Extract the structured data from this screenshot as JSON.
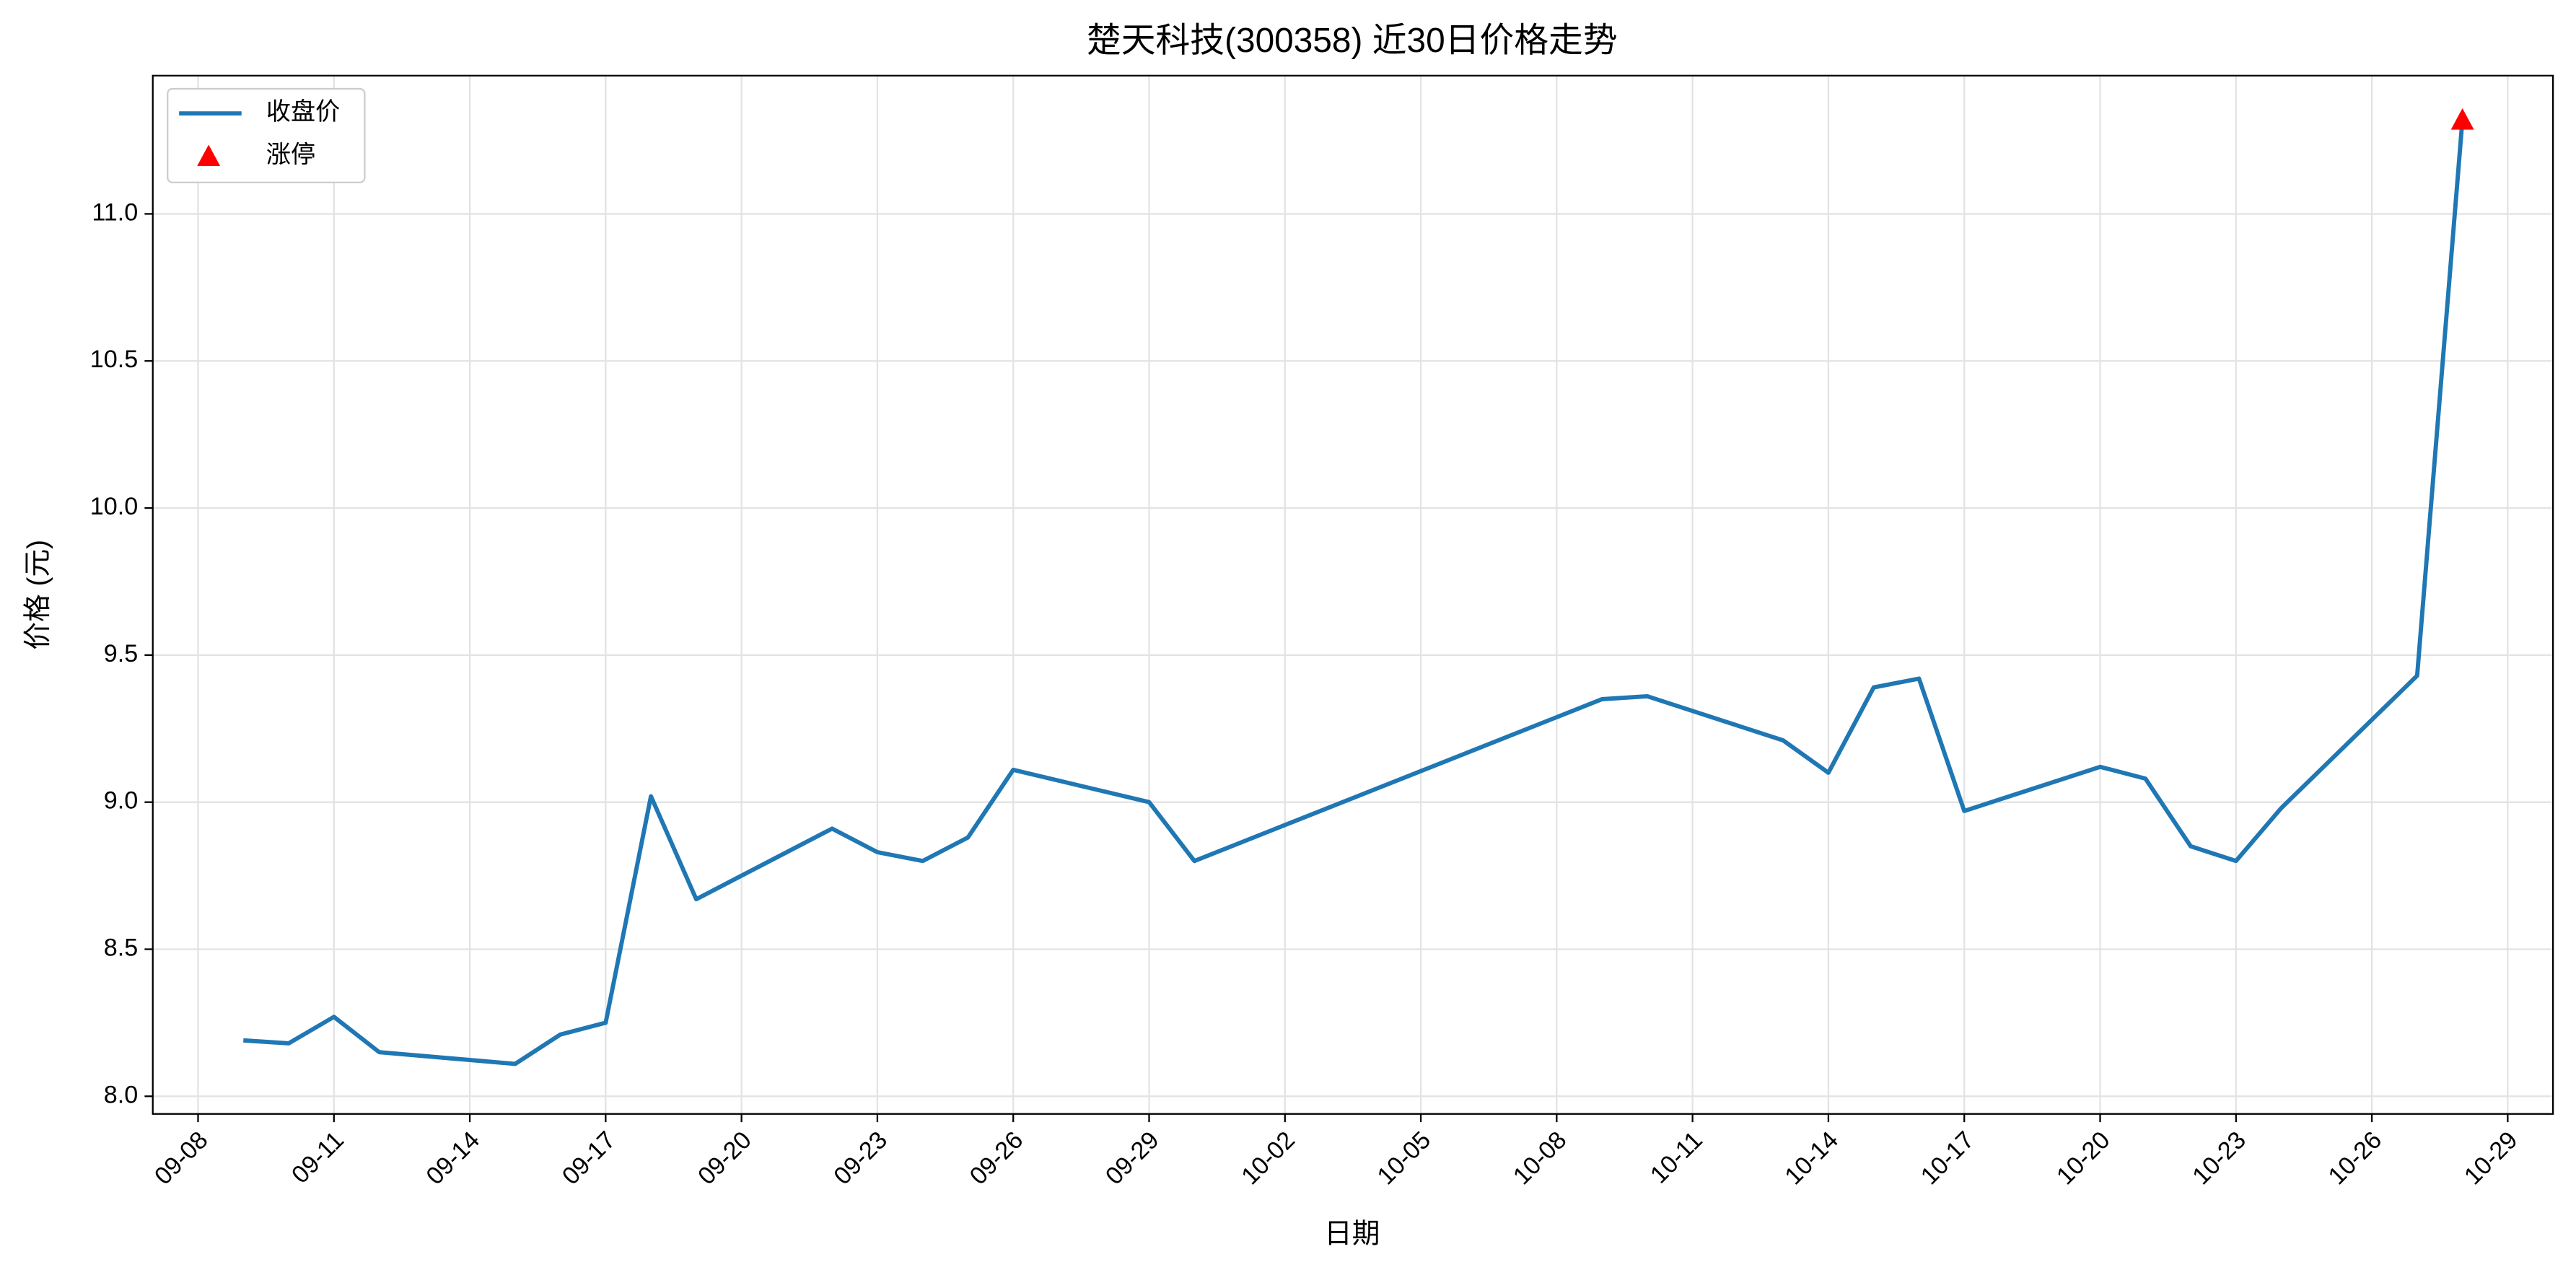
{
  "chart_data": {
    "type": "line",
    "title": "楚天科技(300358) 近30日价格走势",
    "x_label": "日期",
    "y_label": "价格 (元)",
    "series": [
      {
        "name": "收盘价",
        "color": "#1f77b4",
        "x": [
          "09-09",
          "09-10",
          "09-11",
          "09-12",
          "09-15",
          "09-16",
          "09-17",
          "09-18",
          "09-19",
          "09-22",
          "09-23",
          "09-24",
          "09-25",
          "09-26",
          "09-29",
          "09-30",
          "10-09",
          "10-10",
          "10-13",
          "10-14",
          "10-15",
          "10-16",
          "10-17",
          "10-20",
          "10-21",
          "10-22",
          "10-23",
          "10-24",
          "10-27",
          "10-28"
        ],
        "values": [
          8.19,
          8.18,
          8.27,
          8.15,
          8.11,
          8.21,
          8.25,
          9.02,
          8.67,
          8.91,
          8.83,
          8.8,
          8.88,
          9.11,
          9.0,
          8.8,
          9.35,
          9.36,
          9.21,
          9.1,
          9.39,
          9.42,
          8.97,
          9.12,
          9.08,
          8.85,
          8.8,
          8.98,
          9.43,
          11.32
        ]
      },
      {
        "name": "涨停",
        "color": "#ff0000",
        "marker": "triangle",
        "x": [
          "10-28"
        ],
        "values": [
          11.32
        ]
      }
    ],
    "xlim": [
      "09-07",
      "10-30"
    ],
    "xticks": [
      "09-08",
      "09-11",
      "09-14",
      "09-17",
      "09-20",
      "09-23",
      "09-26",
      "09-29",
      "10-02",
      "10-05",
      "10-08",
      "10-11",
      "10-14",
      "10-17",
      "10-20",
      "10-23",
      "10-26",
      "10-29"
    ],
    "ylim": [
      7.94,
      11.47
    ],
    "yticks": [
      {
        "value": 8,
        "label": "8.0"
      },
      {
        "value": 8.5,
        "label": "8.5"
      },
      {
        "value": 9,
        "label": "9.0"
      },
      {
        "value": 9.5,
        "label": "9.5"
      },
      {
        "value": 10,
        "label": "10.0"
      },
      {
        "value": 10.5,
        "label": "10.5"
      },
      {
        "value": 11,
        "label": "11.0"
      }
    ],
    "grid": true,
    "legend": "upper left"
  }
}
